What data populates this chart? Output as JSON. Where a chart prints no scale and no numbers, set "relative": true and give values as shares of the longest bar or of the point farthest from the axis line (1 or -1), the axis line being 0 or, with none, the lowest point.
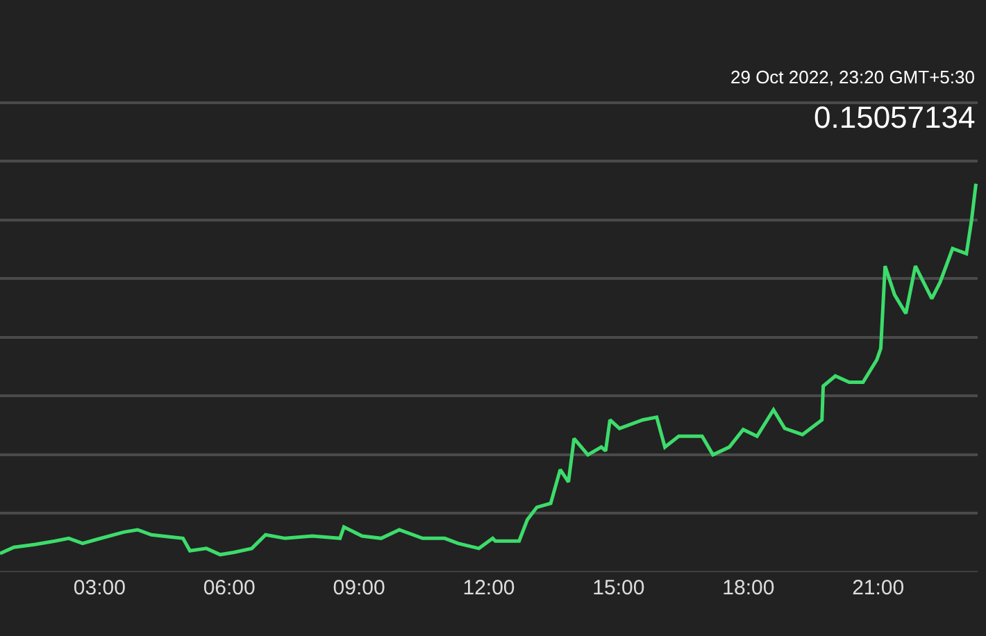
{
  "chart_data": {
    "type": "line",
    "relative": true,
    "grid": "y",
    "legend": false,
    "marker": "none",
    "line_style": "solid",
    "x": [
      0.7,
      1.02,
      1.5,
      1.97,
      2.29,
      2.61,
      2.93,
      3.56,
      3.88,
      4.2,
      4.93,
      5.09,
      5.47,
      5.79,
      6.11,
      6.52,
      6.84,
      7.29,
      7.92,
      8.56,
      8.65,
      9.07,
      9.51,
      9.93,
      10.47,
      10.98,
      11.29,
      11.77,
      12.09,
      12.15,
      12.7,
      12.89,
      13.11,
      13.43,
      13.65,
      13.84,
      13.97,
      14.29,
      14.6,
      14.7,
      14.8,
      15.02,
      15.56,
      15.88,
      16.07,
      16.39,
      16.93,
      17.18,
      17.56,
      17.88,
      18.2,
      18.58,
      18.84,
      19.25,
      19.7,
      19.73,
      20.01,
      20.33,
      20.65,
      20.97,
      21.06,
      21.16,
      21.38,
      21.64,
      21.86,
      22.24,
      22.43,
      22.72,
      23.04,
      23.16,
      23.26
    ],
    "series": [
      {
        "color": "#3ddc6b",
        "values": [
          0.048,
          0.064,
          0.071,
          0.08,
          0.087,
          0.074,
          0.084,
          0.103,
          0.109,
          0.096,
          0.087,
          0.055,
          0.061,
          0.045,
          0.051,
          0.061,
          0.096,
          0.087,
          0.093,
          0.087,
          0.116,
          0.093,
          0.087,
          0.109,
          0.087,
          0.087,
          0.074,
          0.061,
          0.087,
          0.08,
          0.08,
          0.135,
          0.167,
          0.177,
          0.264,
          0.232,
          0.344,
          0.302,
          0.322,
          0.312,
          0.392,
          0.37,
          0.392,
          0.399,
          0.322,
          0.35,
          0.35,
          0.302,
          0.322,
          0.367,
          0.35,
          0.418,
          0.37,
          0.354,
          0.392,
          0.479,
          0.505,
          0.489,
          0.489,
          0.547,
          0.576,
          0.788,
          0.714,
          0.666,
          0.788,
          0.704,
          0.746,
          0.833,
          0.82,
          0.907,
          1
        ]
      }
    ],
    "xlim": [
      0.7,
      23.3
    ],
    "xticks": [
      {
        "value": 3,
        "label": "03:00"
      },
      {
        "value": 6,
        "label": "06:00"
      },
      {
        "value": 9,
        "label": "09:00"
      },
      {
        "value": 12,
        "label": "12:00"
      },
      {
        "value": 15,
        "label": "15:00"
      },
      {
        "value": 18,
        "label": "18:00"
      },
      {
        "value": 21,
        "label": "21:00"
      }
    ],
    "annotations": [
      "29 Oct 2022, 23:20 GMT+5:30",
      "0.15057134"
    ]
  }
}
